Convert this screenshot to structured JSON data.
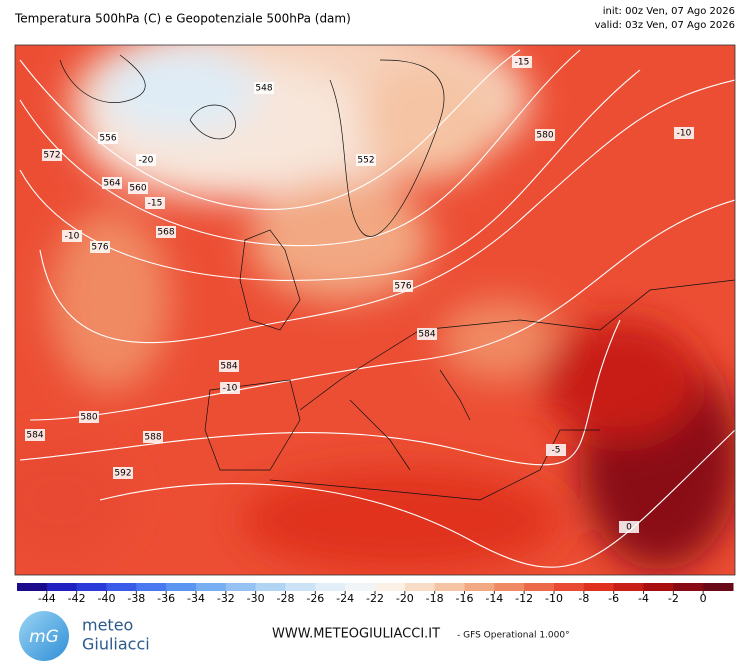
{
  "header": {
    "title": "Temperatura 500hPa (C) e Geopotenziale 500hPa (dam)",
    "init": "init: 00z Ven, 07 Ago 2026",
    "valid": "valid: 03z Ven, 07 Ago 2026"
  },
  "map": {
    "contour_labels": [
      548,
      556,
      564,
      572,
      580,
      588,
      592,
      576,
      584,
      -20,
      -15,
      -10,
      -10,
      -10,
      0,
      552,
      560,
      568,
      584,
      580,
      -15,
      576,
      584,
      -5
    ]
  },
  "colorbar": {
    "ticks": [
      -44,
      -42,
      -40,
      -38,
      -36,
      -34,
      -32,
      -30,
      -28,
      -26,
      -24,
      -22,
      -20,
      -18,
      -16,
      -14,
      -12,
      -10,
      -8,
      -6,
      -4,
      -2,
      0
    ],
    "colors": [
      "#1a0a8c",
      "#2020c0",
      "#2a3ad8",
      "#3a5ae8",
      "#4a78f0",
      "#5a95f2",
      "#78aef2",
      "#95c2f2",
      "#b2d4f4",
      "#cce2f6",
      "#e2eef8",
      "#f2f5f8",
      "#faf0e6",
      "#f8dcc6",
      "#f5c4a4",
      "#f2a882",
      "#f08a64",
      "#ec6a48",
      "#e84a32",
      "#e0301e",
      "#c81e16",
      "#a81010",
      "#880a14",
      "#6a0818"
    ]
  },
  "footer": {
    "logo_mark": "mG",
    "logo_top": "meteo",
    "logo_bottom": "Giuliacci",
    "website": "WWW.METEOGIULIACCI.IT",
    "model": "- GFS Operational 1.000°"
  }
}
